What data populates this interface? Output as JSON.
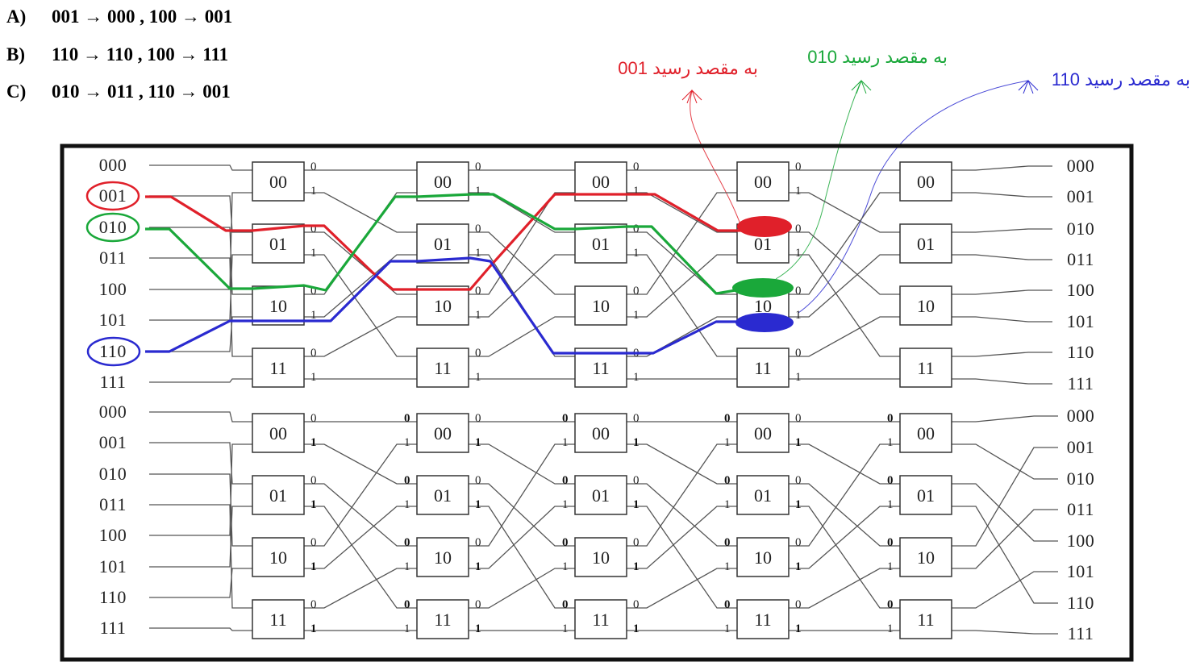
{
  "options": [
    {
      "letter": "A)",
      "text": "001 → 000 , 100 → 001"
    },
    {
      "letter": "B)",
      "text": "110 → 110 , 100 → 111"
    },
    {
      "letter": "C)",
      "text": "010 → 011 , 110 → 001"
    }
  ],
  "annotations": [
    {
      "text": "001 به مقصد رسید",
      "color": "#e0202a"
    },
    {
      "text": "010 به مقصد رسید",
      "color": "#1aa83a"
    },
    {
      "text": "110 به مقصد رسید",
      "color": "#2a2ad0"
    }
  ],
  "network": {
    "addresses": [
      "000",
      "001",
      "010",
      "011",
      "100",
      "101",
      "110",
      "111"
    ],
    "switch_labels": [
      "00",
      "01",
      "10",
      "11"
    ],
    "ports": [
      "0",
      "1"
    ],
    "stages": 5
  },
  "paths": [
    {
      "source": "001",
      "destination": "001",
      "color": "#e0202a"
    },
    {
      "source": "010",
      "destination": "010",
      "color": "#1aa83a"
    },
    {
      "source": "110",
      "destination": "110",
      "color": "#2a2ad0"
    }
  ],
  "colors": {
    "red": "#e0202a",
    "green": "#1aa83a",
    "blue": "#2a2ad0",
    "frame": "#111111",
    "wire": "#555555"
  }
}
